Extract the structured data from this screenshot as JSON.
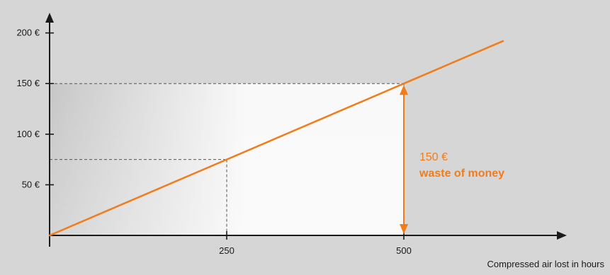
{
  "chart_data": {
    "type": "line",
    "title": "",
    "xlabel": "Compressed air lost in hours",
    "ylabel": "",
    "x": [
      0,
      250,
      500,
      640
    ],
    "y": [
      0,
      75,
      150,
      192
    ],
    "xlim": [
      0,
      720
    ],
    "ylim": [
      0,
      210
    ],
    "x_ticks": [
      {
        "value": 250,
        "label": "250"
      },
      {
        "value": 500,
        "label": "500"
      }
    ],
    "y_ticks": [
      {
        "value": 50,
        "label": "50 €"
      },
      {
        "value": 100,
        "label": "100 €"
      },
      {
        "value": 150,
        "label": "150 €"
      },
      {
        "value": 200,
        "label": "200 €"
      }
    ],
    "reference_points": [
      {
        "x": 250,
        "y": 75
      },
      {
        "x": 500,
        "y": 150
      }
    ],
    "annotation": {
      "x": 500,
      "y_from": 0,
      "y_to": 150,
      "lines": [
        "150 €",
        "waste of money"
      ]
    },
    "colors": {
      "line": "#f07d1a",
      "annotation": "#f07d1a",
      "axis": "#1a1a1a",
      "guides": "#555555",
      "shade_light": "#ffffff",
      "shade_dark": "#c4c4c4"
    }
  }
}
